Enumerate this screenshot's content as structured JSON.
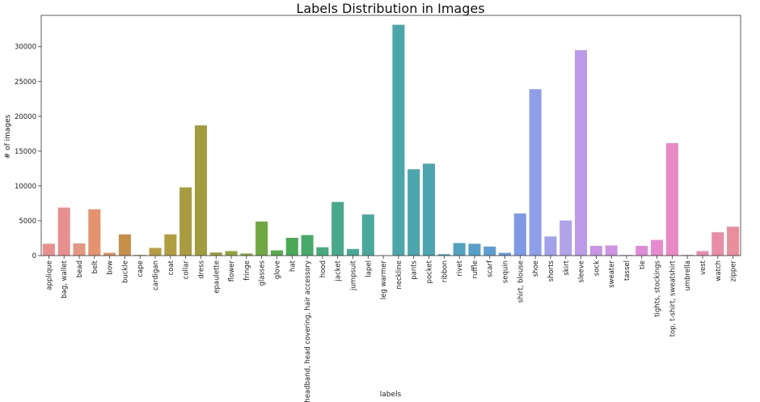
{
  "chart_data": {
    "type": "bar",
    "title": "Labels Distribution in Images",
    "xlabel": "labels",
    "ylabel": "# of images",
    "ylim": [
      0,
      34500
    ],
    "yticks": [
      0,
      5000,
      10000,
      15000,
      20000,
      25000,
      30000
    ],
    "grid": false,
    "categories": [
      "applique",
      "bag, wallet",
      "bead",
      "belt",
      "bow",
      "buckle",
      "cape",
      "cardigan",
      "coat",
      "collar",
      "dress",
      "epaulette",
      "flower",
      "fringe",
      "glasses",
      "glove",
      "hat",
      "headband, head covering, hair accessory",
      "hood",
      "jacket",
      "jumpsuit",
      "lapel",
      "leg warmer",
      "neckline",
      "pants",
      "pocket",
      "ribbon",
      "rivet",
      "ruffle",
      "scarf",
      "sequin",
      "shirt, blouse",
      "shoe",
      "shorts",
      "skirt",
      "sleeve",
      "sock",
      "sweater",
      "tassel",
      "tie",
      "tights, stockings",
      "top, t-shirt, sweatshirt",
      "umbrella",
      "vest",
      "watch",
      "zipper"
    ],
    "values": [
      1700,
      6900,
      1750,
      6650,
      400,
      3050,
      100,
      1100,
      3050,
      9800,
      18700,
      450,
      650,
      300,
      4900,
      750,
      2550,
      2950,
      1200,
      7700,
      950,
      5900,
      30,
      33150,
      12400,
      13200,
      200,
      1800,
      1700,
      1300,
      400,
      6050,
      23900,
      2750,
      5050,
      29500,
      1400,
      1450,
      100,
      1400,
      2250,
      16150,
      100,
      650,
      3350,
      4150
    ],
    "colors": [
      "#e88f8f",
      "#e89090",
      "#e5967e",
      "#e5926f",
      "#d9905c",
      "#c7904a",
      "#bf9343",
      "#b79c44",
      "#b09e40",
      "#a99b3f",
      "#a19c3e",
      "#9ba03d",
      "#92a23c",
      "#86a53d",
      "#6fa843",
      "#58ab4c",
      "#4aa955",
      "#46aa6a",
      "#47aa7a",
      "#47a98a",
      "#47a993",
      "#48a89b",
      "#49a7a3",
      "#4aa6a8",
      "#4ba5ac",
      "#4ca4b1",
      "#4ea2b7",
      "#52a1bf",
      "#579fc8",
      "#5c9dd3",
      "#689ade",
      "#7e9ae6",
      "#8e9ee8",
      "#a2a2ea",
      "#b0a3ea",
      "#bb9ae9",
      "#c696e5",
      "#cf93e2",
      "#d68fde",
      "#e08bd8",
      "#e78ad0",
      "#e98ac7",
      "#e98bbd",
      "#e98cb2",
      "#e98da7",
      "#e98f9b"
    ]
  }
}
